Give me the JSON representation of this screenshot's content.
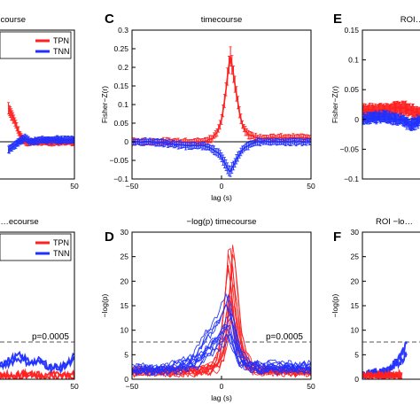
{
  "panels": [
    {
      "id": "A",
      "letter": "",
      "title": "…course",
      "xlim": [
        -50,
        50
      ],
      "ylim": [
        -0.1,
        0.3
      ],
      "xticks": [
        "50"
      ],
      "yticks": [],
      "ylabel": "",
      "xlabel": "",
      "legend": [
        "TPN",
        "TNN"
      ]
    },
    {
      "id": "C",
      "letter": "C",
      "title": "timecourse",
      "xlim": [
        -50,
        50
      ],
      "ylim": [
        -0.1,
        0.3
      ],
      "xticks": [
        "−50",
        "0",
        "50"
      ],
      "yticks": [
        "0.3",
        "0.25",
        "0.2",
        "0.15",
        "0.1",
        "0.05",
        "0",
        "−0.05",
        "−0.1"
      ],
      "ylabel": "Fisher−Z(r)",
      "xlabel": "lag (s)"
    },
    {
      "id": "E",
      "letter": "E",
      "title": "ROI…",
      "xlim": [
        -50,
        50
      ],
      "ylim": [
        -0.1,
        0.15
      ],
      "xticks": [],
      "yticks": [
        "0.15",
        "0.1",
        "0.05",
        "0",
        "−0.05",
        "−0.1"
      ],
      "ylabel": "Fisher−Z(r)",
      "xlabel": ""
    },
    {
      "id": "B",
      "letter": "",
      "title": "…ecourse",
      "xlim": [
        -50,
        50
      ],
      "ylim": [
        0,
        30
      ],
      "xticks": [
        "50"
      ],
      "yticks": [],
      "ylabel": "",
      "xlabel": "",
      "legend": [
        "TPN",
        "TNN"
      ],
      "threshold_label": "p=0.0005"
    },
    {
      "id": "D",
      "letter": "D",
      "title": "−log(p) timecourse",
      "xlim": [
        -50,
        50
      ],
      "ylim": [
        0,
        30
      ],
      "xticks": [
        "−50",
        "0",
        "50"
      ],
      "yticks": [
        "30",
        "25",
        "20",
        "15",
        "10",
        "5",
        "0"
      ],
      "ylabel": "−log(p)",
      "xlabel": "lag (s)",
      "threshold_label": "p=0.0005"
    },
    {
      "id": "F",
      "letter": "F",
      "title": "ROI  −lo…",
      "xlim": [
        -50,
        50
      ],
      "ylim": [
        0,
        30
      ],
      "xticks": [],
      "yticks": [
        "30",
        "25",
        "20",
        "15",
        "10",
        "5",
        "0"
      ],
      "ylabel": "−log(p)",
      "xlabel": ""
    }
  ],
  "chart_data": [
    {
      "type": "line",
      "panel": "C",
      "title": "timecourse",
      "xlabel": "lag (s)",
      "ylabel": "Fisher−Z(r)",
      "xlim": [
        -50,
        50
      ],
      "ylim": [
        -0.1,
        0.3
      ],
      "series": [
        {
          "name": "TPN",
          "color": "#ff2020",
          "x": [
            -50,
            -40,
            -30,
            -20,
            -10,
            -5,
            -2,
            0,
            2,
            4,
            5,
            6,
            8,
            10,
            12,
            15,
            20,
            30,
            40,
            50
          ],
          "values": [
            0.0,
            0.0,
            0.0,
            0.0,
            0.0,
            0.01,
            0.03,
            0.06,
            0.12,
            0.2,
            0.23,
            0.2,
            0.14,
            0.08,
            0.04,
            0.02,
            0.01,
            0.01,
            0.01,
            0.01
          ]
        },
        {
          "name": "TNN",
          "color": "#2030ff",
          "x": [
            -50,
            -40,
            -30,
            -20,
            -10,
            -5,
            -2,
            0,
            2,
            4,
            5,
            6,
            8,
            10,
            12,
            15,
            20,
            30,
            40,
            50
          ],
          "values": [
            0.0,
            0.0,
            -0.005,
            -0.01,
            -0.01,
            -0.02,
            -0.03,
            -0.04,
            -0.06,
            -0.075,
            -0.08,
            -0.07,
            -0.05,
            -0.035,
            -0.02,
            -0.01,
            0.0,
            0.0,
            0.0,
            0.0
          ]
        }
      ]
    },
    {
      "type": "line",
      "panel": "E",
      "title": "ROI…",
      "ylabel": "Fisher−Z(r)",
      "xlim": [
        -50,
        50
      ],
      "ylim": [
        -0.1,
        0.15
      ],
      "series": [
        {
          "name": "TPN",
          "color": "#ff2020",
          "x": [
            -50,
            -30,
            -10,
            0,
            10,
            30,
            50
          ],
          "values": [
            0.015,
            0.015,
            0.02,
            0.015,
            0.01,
            0.015,
            0.02
          ]
        },
        {
          "name": "TNN",
          "color": "#2030ff",
          "x": [
            -50,
            -30,
            -10,
            0,
            10,
            30,
            50
          ],
          "values": [
            0.0,
            0.005,
            0.0,
            -0.01,
            0.0,
            0.005,
            0.0
          ]
        }
      ]
    },
    {
      "type": "line",
      "panel": "A",
      "xlim": [
        -50,
        50
      ],
      "ylim": [
        -0.1,
        0.3
      ],
      "series": [
        {
          "name": "TPN",
          "color": "#ff2020",
          "x": [
            -10,
            -5,
            0,
            5,
            10,
            20,
            30,
            40,
            50
          ],
          "values": [
            0.09,
            0.06,
            0.02,
            0.0,
            0.0,
            0.0,
            0.0,
            0.0,
            0.0
          ]
        },
        {
          "name": "TNN",
          "color": "#2030ff",
          "x": [
            -10,
            -5,
            0,
            5,
            10,
            20,
            30,
            40,
            50
          ],
          "values": [
            -0.02,
            -0.01,
            0.0,
            0.01,
            0.0,
            0.005,
            0.005,
            0.005,
            0.005
          ]
        }
      ]
    },
    {
      "type": "line",
      "panel": "D",
      "title": "−log(p) timecourse",
      "xlabel": "lag (s)",
      "ylabel": "−log(p)",
      "xlim": [
        -50,
        50
      ],
      "ylim": [
        0,
        30
      ],
      "threshold": 7.6,
      "threshold_label": "p=0.0005",
      "series": [
        {
          "name": "TPN",
          "color": "#ff2020",
          "x": [
            -50,
            -30,
            -15,
            -8,
            -3,
            0,
            3,
            5,
            7,
            10,
            15,
            20,
            30,
            50
          ],
          "values": [
            1.5,
            1.5,
            1.5,
            2,
            3,
            6,
            16,
            27,
            20,
            8,
            3,
            2,
            1.5,
            1.5
          ]
        },
        {
          "name": "TNN",
          "color": "#2030ff",
          "x": [
            -50,
            -30,
            -15,
            -8,
            -3,
            0,
            3,
            5,
            7,
            10,
            15,
            20,
            30,
            50
          ],
          "values": [
            2,
            2,
            4,
            8,
            10,
            12,
            15,
            14,
            10,
            5,
            3,
            2.5,
            2.5,
            2.5
          ]
        }
      ]
    },
    {
      "type": "line",
      "panel": "B",
      "xlim": [
        -50,
        50
      ],
      "ylim": [
        0,
        30
      ],
      "threshold": 7.6,
      "threshold_label": "p=0.0005",
      "series": [
        {
          "name": "TPN",
          "color": "#ff2020",
          "x": [
            -50,
            -40,
            -35,
            -30,
            -20,
            -10,
            0,
            10,
            20,
            30,
            40,
            50
          ],
          "values": [
            13,
            6,
            0.5,
            0.5,
            0.5,
            0.5,
            0.5,
            0.5,
            0.5,
            0.5,
            0.5,
            0.5
          ]
        },
        {
          "name": "TNN",
          "color": "#2030ff",
          "x": [
            -50,
            -45,
            -40,
            -35,
            -30,
            -20,
            -10,
            0,
            10,
            20,
            30,
            40,
            50
          ],
          "values": [
            8,
            5,
            2,
            2,
            2,
            2,
            3,
            4,
            3,
            3,
            2,
            2,
            4
          ]
        }
      ]
    },
    {
      "type": "line",
      "panel": "F",
      "ylabel": "−log(p)",
      "xlim": [
        -50,
        50
      ],
      "ylim": [
        0,
        30
      ],
      "threshold": 7.6,
      "series": [
        {
          "name": "TNN",
          "color": "#2030ff",
          "x": [
            -50,
            -40,
            -30,
            -20,
            -10,
            -5
          ],
          "values": [
            0.5,
            1,
            1,
            2,
            4,
            6
          ]
        },
        {
          "name": "TPN",
          "color": "#ff2020",
          "x": [
            -50,
            -30,
            -10
          ],
          "values": [
            0.5,
            0.5,
            0.5
          ]
        }
      ]
    }
  ]
}
